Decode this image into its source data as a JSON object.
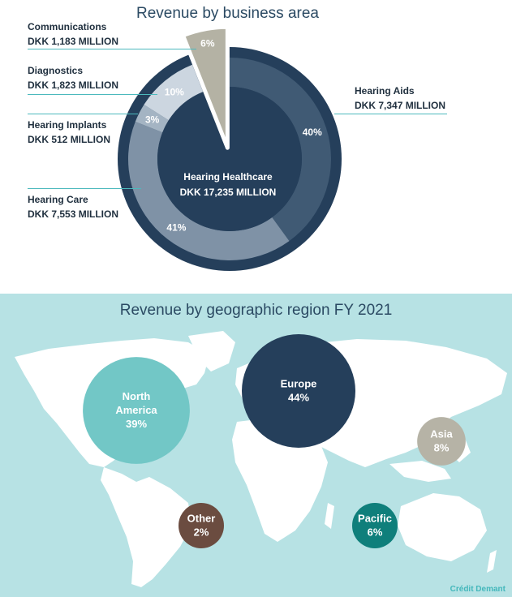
{
  "chart_data": [
    {
      "type": "pie",
      "title": "Revenue by business area",
      "center_label": {
        "name": "Hearing Healthcare",
        "value": "DKK 17,235 MILLION"
      },
      "slices": [
        {
          "name": "Hearing Aids",
          "value_text": "DKK 7,347 MILLION",
          "percent": 40,
          "percent_label": "40%",
          "color": "#405a74",
          "ring": "outer"
        },
        {
          "name": "Hearing Care",
          "value_text": "DKK 7,553 MILLION",
          "percent": 41,
          "percent_label": "41%",
          "color": "#7f92a6",
          "ring": "outer"
        },
        {
          "name": "Hearing Implants",
          "value_text": "DKK 512 MILLION",
          "percent": 3,
          "percent_label": "3%",
          "color": "#a4b4c3",
          "ring": "outer"
        },
        {
          "name": "Diagnostics",
          "value_text": "DKK 1,823 MILLION",
          "percent": 10,
          "percent_label": "10%",
          "color": "#ccd6e0",
          "ring": "outer"
        },
        {
          "name": "Communications",
          "value_text": "DKK 1,183 MILLION",
          "percent": 6,
          "percent_label": "6%",
          "color": "#b4b2a4",
          "ring": "exploded"
        }
      ],
      "colors": {
        "inner_disc": "#253f5b",
        "outer_ring": "#253f5b"
      }
    },
    {
      "type": "bubble",
      "title": "Revenue by geographic region FY 2021",
      "regions": [
        {
          "name": "North America",
          "line1": "North",
          "line2": "America",
          "percent_label": "39%",
          "percent": 39,
          "color": "#72c7c6"
        },
        {
          "name": "Europe",
          "line1": "Europe",
          "line2": "",
          "percent_label": "44%",
          "percent": 44,
          "color": "#253f5b"
        },
        {
          "name": "Asia",
          "line1": "Asia",
          "line2": "",
          "percent_label": "8%",
          "percent": 8,
          "color": "#b6b3a6"
        },
        {
          "name": "Pacific",
          "line1": "Pacific",
          "line2": "",
          "percent_label": "6%",
          "percent": 6,
          "color": "#0f7f7b"
        },
        {
          "name": "Other",
          "line1": "Other",
          "line2": "",
          "percent_label": "2%",
          "percent": 2,
          "color": "#6b4c40"
        }
      ],
      "colors": {
        "background": "#b7e2e4",
        "land": "#ffffff"
      }
    }
  ],
  "credit": "Crédit Demant"
}
